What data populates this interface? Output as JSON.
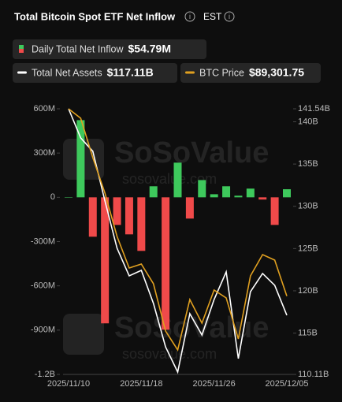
{
  "header": {
    "title": "Total Bitcoin Spot ETF Net Inflow",
    "timezone": "EST"
  },
  "watermark": {
    "brand": "SoSoValue",
    "site": "sosovalue.com"
  },
  "chart_data": {
    "type": "bar-line",
    "categories": [
      "2025/11/10",
      null,
      null,
      null,
      null,
      null,
      "2025/11/18",
      null,
      null,
      null,
      null,
      null,
      "2025/11/26",
      null,
      null,
      null,
      null,
      null,
      "2025/12/05"
    ],
    "series": [
      {
        "name": "Daily Total Net Inflow",
        "latest": "$54.79M",
        "positive_color": "#3ec95c",
        "negative_color": "#f04a4a",
        "axis": "y",
        "values": [
          1,
          523,
          -267,
          -854,
          -187,
          -251,
          -363,
          75,
          -897,
          235,
          -144,
          117,
          21,
          75,
          11,
          59,
          -15,
          -187,
          54.79
        ]
      },
      {
        "name": "Total Net Assets",
        "latest": "$117.11B",
        "color": "#ffffff",
        "axis": "y2",
        "values": [
          141.54,
          138.1,
          136.51,
          130.63,
          125.04,
          121.77,
          122.42,
          118.51,
          113.37,
          110.39,
          117.29,
          114.77,
          118.97,
          122.24,
          111.98,
          119.9,
          122.05,
          120.65,
          117.11
        ]
      },
      {
        "name": "BTC Price",
        "latest": "$89,301.75",
        "color": "#e0a020",
        "axis": "y3",
        "values": [
          106000,
          105157,
          101644,
          98482,
          94618,
          91808,
          92159,
          90402,
          86187,
          84501,
          88997,
          86889,
          89840,
          89137,
          85484,
          91105,
          93002,
          92510,
          89301.75
        ]
      }
    ],
    "ylim": [
      -1200,
      600
    ],
    "yticks": [
      {
        "value": 600,
        "label": "600M"
      },
      {
        "value": 300,
        "label": "300M"
      },
      0,
      {
        "value": -300,
        "label": "-300M"
      },
      {
        "value": -600,
        "label": "-600M"
      },
      {
        "value": -900,
        "label": "-900M"
      },
      {
        "value": -1200,
        "label": "-1.2B"
      }
    ],
    "y2lim": [
      110.11,
      141.54
    ],
    "y2ticks": [
      {
        "value": 141.54,
        "label": "141.54B"
      },
      {
        "value": 140,
        "label": "140B"
      },
      {
        "value": 135,
        "label": "135B"
      },
      {
        "value": 130,
        "label": "130B"
      },
      {
        "value": 125,
        "label": "125B"
      },
      {
        "value": 120,
        "label": "120B"
      },
      {
        "value": 115,
        "label": "115B"
      },
      {
        "value": 110.11,
        "label": "110.11B"
      }
    ],
    "y3lim": [
      82322,
      106000
    ]
  }
}
